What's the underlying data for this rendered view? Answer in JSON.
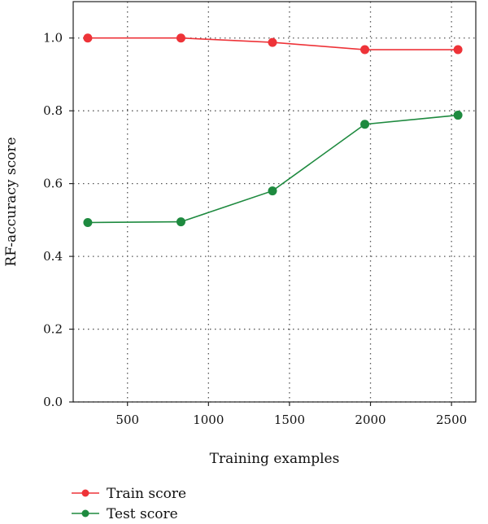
{
  "chart_data": {
    "type": "line",
    "title": "",
    "xlabel": "Training examples",
    "ylabel": "RF-accuracy score",
    "xlim": [
      165,
      2650
    ],
    "ylim": [
      0.0,
      1.1
    ],
    "xticks": [
      500,
      1000,
      1500,
      2000,
      2500
    ],
    "yticks": [
      0.0,
      0.2,
      0.4,
      0.6,
      0.8,
      1.0
    ],
    "xtick_labels": [
      "500",
      "1000",
      "1500",
      "2000",
      "2500"
    ],
    "ytick_labels": [
      "0.0",
      "0.2",
      "0.4",
      "0.6",
      "0.8",
      "1.0"
    ],
    "grid": true,
    "legend_position": "bottom-left",
    "x": [
      255,
      830,
      1395,
      1965,
      2540
    ],
    "series": [
      {
        "name": "Train score",
        "color": "#ee3338",
        "values": [
          1.0,
          1.0,
          0.988,
          0.968,
          0.968
        ]
      },
      {
        "name": "Test score",
        "color": "#1e8a3f",
        "values": [
          0.493,
          0.495,
          0.58,
          0.763,
          0.788
        ]
      }
    ]
  }
}
